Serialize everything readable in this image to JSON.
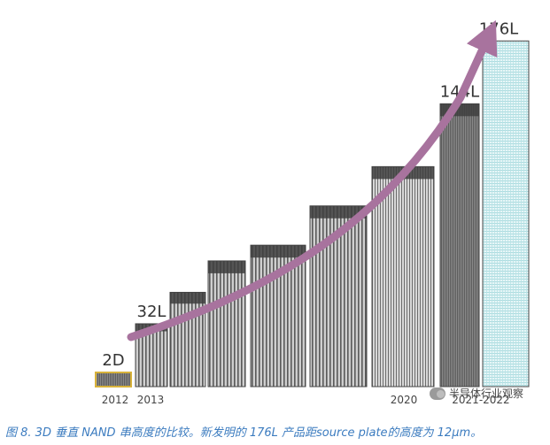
{
  "chart_data": {
    "type": "bar",
    "title": "",
    "xlabel": "",
    "ylabel": "",
    "x_tick_labels": [
      "2012",
      "2013",
      "2020",
      "2021-2022"
    ],
    "bars": [
      {
        "layers": 2,
        "bar_label": "2D"
      },
      {
        "layers": 32,
        "bar_label": "32L"
      },
      {
        "layers": 48,
        "bar_label": ""
      },
      {
        "layers": 64,
        "bar_label": ""
      },
      {
        "layers": 72,
        "bar_label": ""
      },
      {
        "layers": 92,
        "bar_label": ""
      },
      {
        "layers": 112,
        "bar_label": ""
      },
      {
        "layers": 144,
        "bar_label": "144L"
      },
      {
        "layers": 176,
        "bar_label": "176L"
      }
    ],
    "trend_arrow": true
  },
  "caption": "图 8. 3D 垂直 NAND 串高度的比较。新发明的 176L 产品距source plate的高度为 12μm。",
  "watermark": "半导体行业观察",
  "colors": {
    "arrow": "#a8739e",
    "caption": "#3b7bbf",
    "bar_dark": "#6a6a6a",
    "bar_light": "#d4d4d4",
    "cyan_bar": "#bfe8ea"
  }
}
